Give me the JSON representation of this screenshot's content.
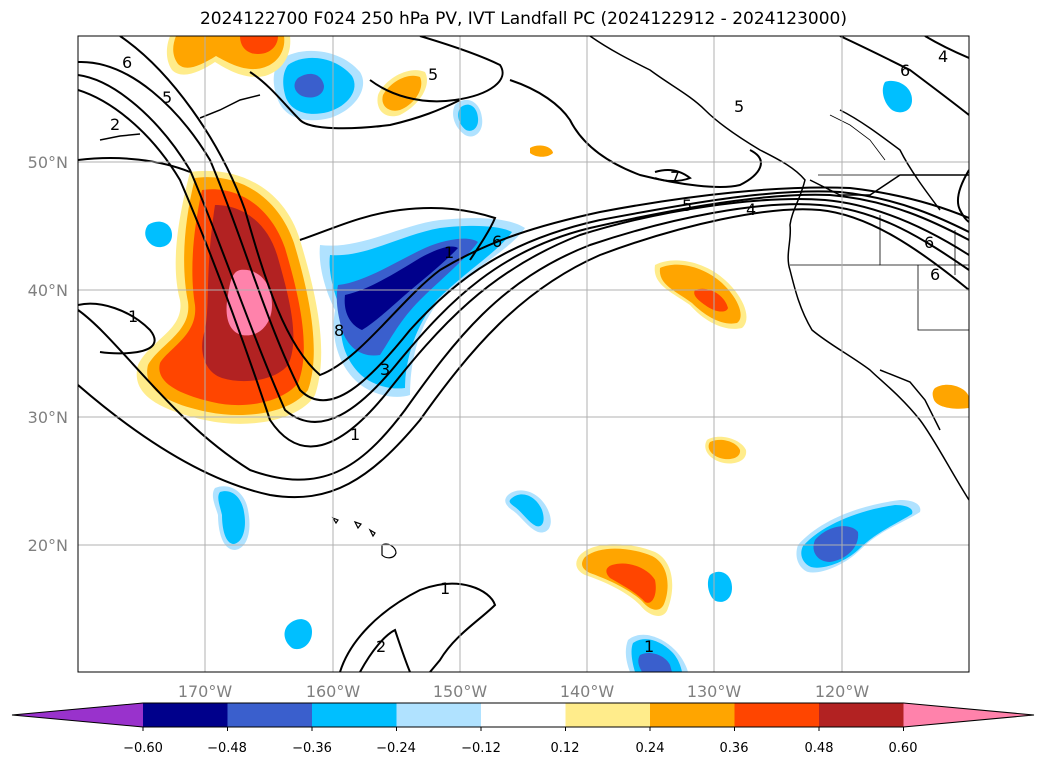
{
  "title": "2024122700 F024 250 hPa PV, IVT Landfall PC (2024122912 - 2024123000)",
  "map": {
    "lon_ticks": [
      "170°W",
      "160°W",
      "150°W",
      "140°W",
      "130°W",
      "120°W"
    ],
    "lat_ticks": [
      "50°N",
      "40°N",
      "30°N",
      "20°N"
    ],
    "lon_values": [
      -170,
      -160,
      -150,
      -140,
      -130,
      -120
    ],
    "lat_values": [
      50,
      40,
      30,
      20
    ],
    "contour_labels": [
      "6",
      "5",
      "2",
      "1",
      "5",
      "6",
      "5",
      "4",
      "6",
      "7",
      "5",
      "4",
      "6",
      "1",
      "6",
      "8",
      "3",
      "1",
      "1",
      "2",
      "1"
    ]
  },
  "colorbar": {
    "ticks": [
      "−0.60",
      "−0.48",
      "−0.36",
      "−0.24",
      "−0.12",
      "0.12",
      "0.24",
      "0.36",
      "0.48",
      "0.60"
    ],
    "colors": [
      "#9932cc",
      "#00008b",
      "#3a5fcd",
      "#00bfff",
      "#b0e2ff",
      "#ffffff",
      "#ffec8b",
      "#ffa500",
      "#ff4500",
      "#b22222",
      "#ff82ab"
    ]
  }
}
